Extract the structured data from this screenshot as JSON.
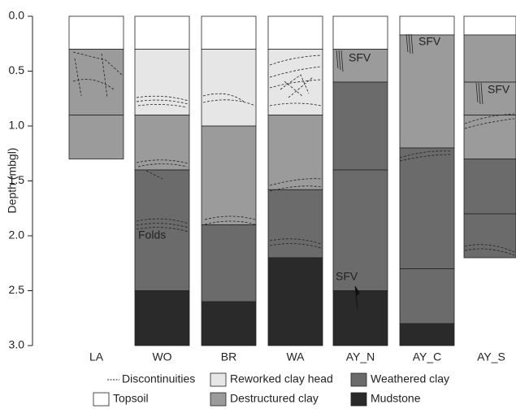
{
  "chart_data": {
    "type": "strata",
    "y_label": "Depth (mbgl)",
    "ylim": [
      0,
      3
    ],
    "yticks": [
      {
        "value": 0,
        "label": "0.0"
      },
      {
        "value": 0.5,
        "label": "0.5"
      },
      {
        "value": 1,
        "label": "1.0"
      },
      {
        "value": 1.5,
        "label": "1.5"
      },
      {
        "value": 2,
        "label": "2.0"
      },
      {
        "value": 2.5,
        "label": "2.5"
      },
      {
        "value": 3,
        "label": "3.0"
      }
    ],
    "legend": [
      {
        "label": "Discontinuities",
        "dashed": true
      },
      {
        "label": "Reworked clay head",
        "color": "#e6e6e6"
      },
      {
        "label": "Weathered clay",
        "color": "#6b6b6b"
      },
      {
        "label": "Topsoil",
        "color": "#ffffff"
      },
      {
        "label": "Destructured clay",
        "color": "#9b9b9b"
      },
      {
        "label": "Mudstone",
        "color": "#2a2a2a"
      }
    ],
    "columns": [
      {
        "name": "LA",
        "layers": [
          {
            "top": 0,
            "bottom": 0.3,
            "type": "Topsoil"
          },
          {
            "top": 0.3,
            "bottom": 0.9,
            "type": "Destructured clay"
          },
          {
            "top": 0.9,
            "bottom": 1.3,
            "type": "Destructured clay"
          }
        ]
      },
      {
        "name": "WO",
        "layers": [
          {
            "top": 0,
            "bottom": 0.3,
            "type": "Topsoil"
          },
          {
            "top": 0.3,
            "bottom": 0.9,
            "type": "Reworked clay head"
          },
          {
            "top": 0.9,
            "bottom": 1.4,
            "type": "Destructured clay"
          },
          {
            "top": 1.4,
            "bottom": 2.5,
            "type": "Weathered clay"
          },
          {
            "top": 2.5,
            "bottom": 3,
            "type": "Mudstone"
          }
        ]
      },
      {
        "name": "BR",
        "layers": [
          {
            "top": 0,
            "bottom": 0.3,
            "type": "Topsoil"
          },
          {
            "top": 0.3,
            "bottom": 1,
            "type": "Reworked clay head"
          },
          {
            "top": 1,
            "bottom": 1.9,
            "type": "Destructured clay"
          },
          {
            "top": 1.9,
            "bottom": 2.6,
            "type": "Weathered clay"
          },
          {
            "top": 2.6,
            "bottom": 3,
            "type": "Mudstone"
          }
        ]
      },
      {
        "name": "WA",
        "layers": [
          {
            "top": 0,
            "bottom": 0.3,
            "type": "Topsoil"
          },
          {
            "top": 0.3,
            "bottom": 0.9,
            "type": "Reworked clay head"
          },
          {
            "top": 0.9,
            "bottom": 1.58,
            "type": "Destructured clay"
          },
          {
            "top": 1.58,
            "bottom": 2.2,
            "type": "Weathered clay"
          },
          {
            "top": 2.2,
            "bottom": 3,
            "type": "Mudstone"
          }
        ]
      },
      {
        "name": "AY_N",
        "layers": [
          {
            "top": 0,
            "bottom": 0.3,
            "type": "Topsoil"
          },
          {
            "top": 0.3,
            "bottom": 0.6,
            "type": "Destructured clay"
          },
          {
            "top": 0.6,
            "bottom": 1.4,
            "type": "Weathered clay"
          },
          {
            "top": 1.4,
            "bottom": 2.5,
            "type": "Weathered clay"
          },
          {
            "top": 2.5,
            "bottom": 3,
            "type": "Mudstone"
          }
        ]
      },
      {
        "name": "AY_C",
        "layers": [
          {
            "top": 0,
            "bottom": 0.17,
            "type": "Topsoil"
          },
          {
            "top": 0.17,
            "bottom": 1.2,
            "type": "Destructured clay"
          },
          {
            "top": 1.2,
            "bottom": 2.3,
            "type": "Weathered clay"
          },
          {
            "top": 2.3,
            "bottom": 2.8,
            "type": "Weathered clay"
          },
          {
            "top": 2.8,
            "bottom": 3,
            "type": "Mudstone"
          }
        ]
      },
      {
        "name": "AY_S",
        "layers": [
          {
            "top": 0,
            "bottom": 0.17,
            "type": "Topsoil"
          },
          {
            "top": 0.17,
            "bottom": 0.6,
            "type": "Destructured clay"
          },
          {
            "top": 0.6,
            "bottom": 0.9,
            "type": "Destructured clay"
          },
          {
            "top": 0.9,
            "bottom": 1.3,
            "type": "Destructured clay"
          },
          {
            "top": 1.3,
            "bottom": 1.8,
            "type": "Weathered clay"
          },
          {
            "top": 1.8,
            "bottom": 2.2,
            "type": "Weathered clay"
          }
        ]
      }
    ],
    "annotations": [
      "SFV",
      "SFV",
      "SFV",
      "SFV",
      "Folds"
    ]
  }
}
